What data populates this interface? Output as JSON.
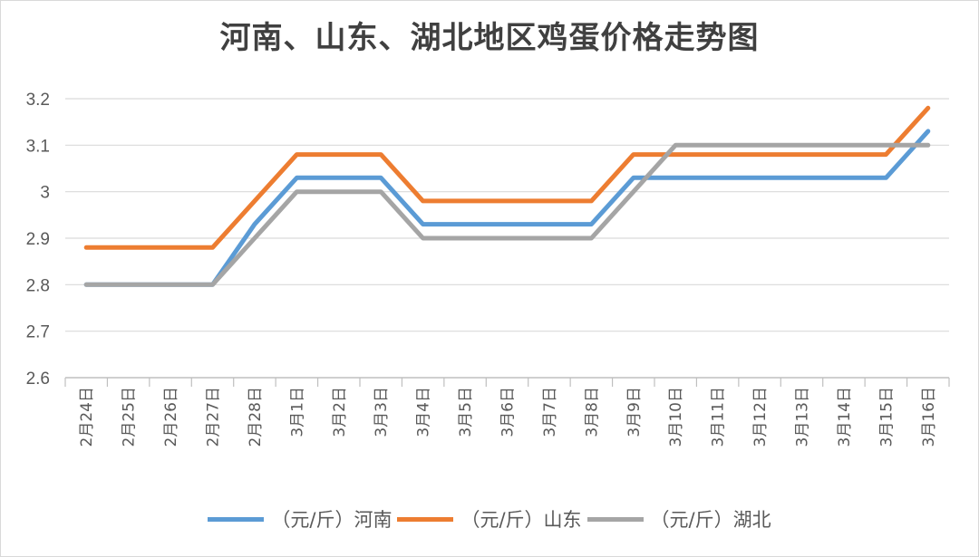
{
  "chart_data": {
    "type": "line",
    "title": "河南、山东、湖北地区鸡蛋价格走势图",
    "xlabel": "",
    "ylabel": "",
    "ylim": [
      2.6,
      3.2
    ],
    "yticks": [
      "2.6",
      "2.7",
      "2.8",
      "2.9",
      "3",
      "3.1",
      "3.2"
    ],
    "grid": true,
    "legend_position": "bottom",
    "categories": [
      "2月24日",
      "2月25日",
      "2月26日",
      "2月27日",
      "2月28日",
      "3月1日",
      "3月2日",
      "3月3日",
      "3月4日",
      "3月5日",
      "3月6日",
      "3月7日",
      "3月8日",
      "3月9日",
      "3月10日",
      "3月11日",
      "3月12日",
      "3月13日",
      "3月14日",
      "3月15日",
      "3月16日"
    ],
    "series": [
      {
        "name": "（元/斤）河南",
        "color": "#5b9bd5",
        "values": [
          2.8,
          2.8,
          2.8,
          2.8,
          2.93,
          3.03,
          3.03,
          3.03,
          2.93,
          2.93,
          2.93,
          2.93,
          2.93,
          3.03,
          3.03,
          3.03,
          3.03,
          3.03,
          3.03,
          3.03,
          3.13
        ]
      },
      {
        "name": "（元/斤）山东",
        "color": "#ed7d31",
        "values": [
          2.88,
          2.88,
          2.88,
          2.88,
          2.98,
          3.08,
          3.08,
          3.08,
          2.98,
          2.98,
          2.98,
          2.98,
          2.98,
          3.08,
          3.08,
          3.08,
          3.08,
          3.08,
          3.08,
          3.08,
          3.18
        ]
      },
      {
        "name": "（元/斤）湖北",
        "color": "#a5a5a5",
        "values": [
          2.8,
          2.8,
          2.8,
          2.8,
          2.9,
          3.0,
          3.0,
          3.0,
          2.9,
          2.9,
          2.9,
          2.9,
          2.9,
          3.0,
          3.1,
          3.1,
          3.1,
          3.1,
          3.1,
          3.1,
          3.1
        ]
      }
    ]
  },
  "colors": {
    "grid": "#d9d9d9",
    "axis": "#bfbfbf",
    "text": "#595959",
    "title": "#404040"
  }
}
